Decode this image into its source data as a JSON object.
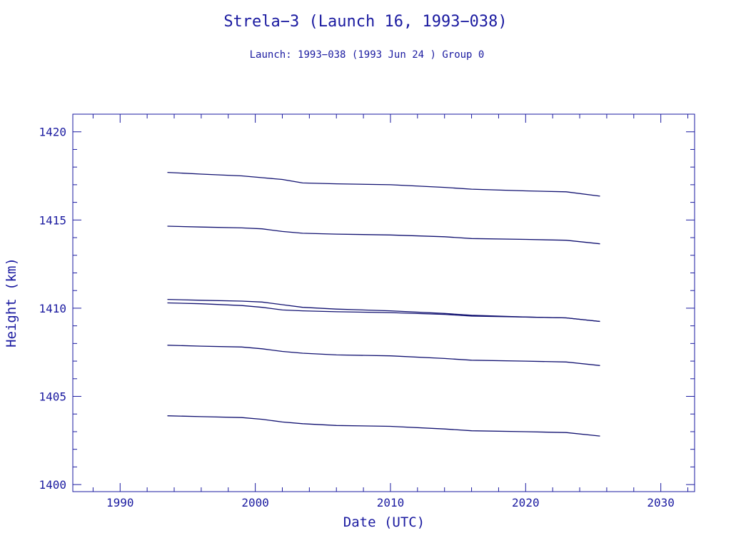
{
  "chart_data": {
    "type": "line",
    "title": "Strela−3 (Launch 16, 1993−038)",
    "subtitle": "Launch: 1993−038  (1993 Jun 24 )  Group 0",
    "xlabel": "Date (UTC)",
    "ylabel": "Height (km)",
    "xlim": [
      1986.5,
      2032.5
    ],
    "ylim": [
      1399.6,
      1421.0
    ],
    "x_ticks": [
      "1990",
      "2000",
      "2010",
      "2020",
      "2030"
    ],
    "y_ticks": [
      "1400",
      "1405",
      "1410",
      "1415",
      "1420"
    ],
    "grid": false,
    "colors": {
      "axis": "#1a1aa0",
      "series": "#101070"
    },
    "series": [
      {
        "x": [
          1993.5,
          1996,
          1999,
          2000.5,
          2002,
          2003.5,
          2006,
          2010,
          2014,
          2016,
          2020,
          2023,
          2025.5
        ],
        "values": [
          1417.7,
          1417.6,
          1417.5,
          1417.4,
          1417.3,
          1417.1,
          1417.05,
          1417.0,
          1416.85,
          1416.75,
          1416.65,
          1416.6,
          1416.35
        ]
      },
      {
        "x": [
          1993.5,
          1996,
          1999,
          2000.5,
          2002,
          2003.5,
          2006,
          2010,
          2014,
          2016,
          2020,
          2023,
          2025.5
        ],
        "values": [
          1414.65,
          1414.6,
          1414.55,
          1414.5,
          1414.35,
          1414.25,
          1414.2,
          1414.15,
          1414.05,
          1413.95,
          1413.9,
          1413.85,
          1413.65
        ]
      },
      {
        "x": [
          1993.5,
          1996,
          1999,
          2000.5,
          2002,
          2003.5,
          2006,
          2010,
          2014,
          2016,
          2020,
          2023,
          2025.5
        ],
        "values": [
          1410.5,
          1410.45,
          1410.4,
          1410.35,
          1410.2,
          1410.05,
          1409.95,
          1409.85,
          1409.7,
          1409.6,
          1409.5,
          1409.45,
          1409.25
        ]
      },
      {
        "x": [
          1993.5,
          1996,
          1999,
          2000.5,
          2002,
          2003.5,
          2006,
          2010,
          2014,
          2016,
          2020,
          2023,
          2025.5
        ],
        "values": [
          1410.3,
          1410.25,
          1410.15,
          1410.05,
          1409.9,
          1409.85,
          1409.8,
          1409.75,
          1409.65,
          1409.55,
          1409.5,
          1409.45,
          1409.25
        ]
      },
      {
        "x": [
          1993.5,
          1996,
          1999,
          2000.5,
          2002,
          2003.5,
          2006,
          2010,
          2014,
          2016,
          2020,
          2023,
          2025.5
        ],
        "values": [
          1407.9,
          1407.85,
          1407.8,
          1407.7,
          1407.55,
          1407.45,
          1407.35,
          1407.3,
          1407.15,
          1407.05,
          1407.0,
          1406.95,
          1406.75
        ]
      },
      {
        "x": [
          1993.5,
          1996,
          1999,
          2000.5,
          2002,
          2003.5,
          2006,
          2010,
          2014,
          2016,
          2020,
          2023,
          2025.5
        ],
        "values": [
          1403.9,
          1403.85,
          1403.8,
          1403.7,
          1403.55,
          1403.45,
          1403.35,
          1403.3,
          1403.15,
          1403.05,
          1403.0,
          1402.95,
          1402.75
        ]
      }
    ]
  }
}
